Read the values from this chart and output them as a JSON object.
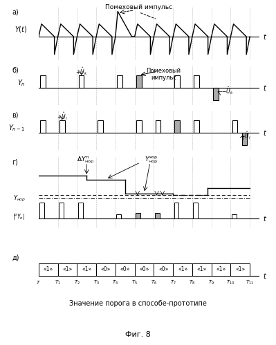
{
  "background": "#ffffff",
  "noise_label_a": "Помеховый импульс",
  "noise_label_b": "Помеховый\nимпульс",
  "threshold_label": "Значение порога в способе-прототипе",
  "fig_label": "Фиг. 8",
  "bits": [
    "«1»",
    "«1»",
    "«1»",
    "«0»",
    "«0»",
    "«0»",
    "«0»",
    "«1»",
    "«1»",
    "«1»",
    "«1»"
  ],
  "periods": [
    "T",
    "T_1",
    "T_2",
    "T_3",
    "T_4",
    "T_5",
    "T_6",
    "T_7",
    "T_8",
    "T_9",
    "T_{10}",
    "T_{11}"
  ],
  "gray": "#aaaaaa",
  "darkgray": "#888888"
}
